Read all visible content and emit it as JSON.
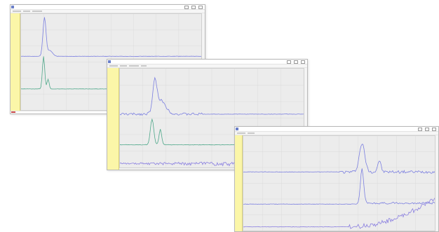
{
  "windows": [
    {
      "id": "w1",
      "title": "",
      "traces": [
        {
          "color": "#7b7fe0",
          "kind": "peak1"
        },
        {
          "color": "#4fa88a",
          "kind": "peak1b"
        }
      ]
    },
    {
      "id": "w2",
      "title": "",
      "traces": [
        {
          "color": "#7b7fe0",
          "kind": "peak2"
        },
        {
          "color": "#4fa88a",
          "kind": "peak2b"
        },
        {
          "color": "#8a7fe0",
          "kind": "noise"
        }
      ]
    },
    {
      "id": "w3",
      "title": "",
      "traces": [
        {
          "color": "#7b7fe0",
          "kind": "peak3"
        },
        {
          "color": "#7b7fe0",
          "kind": "peak3b"
        },
        {
          "color": "#8a7fe0",
          "kind": "rise"
        }
      ]
    }
  ],
  "colors": {
    "plot_bg": "#ececec",
    "side_panel": "#fbf6a8",
    "grid": "#d2d2d2"
  }
}
